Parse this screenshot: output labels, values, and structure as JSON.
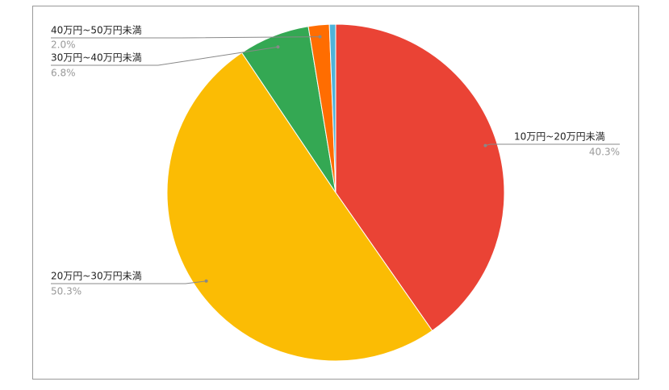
{
  "chart_data": {
    "type": "pie",
    "categories": [
      "10万円~20万円未満",
      "20万円~30万円未満",
      "30万円~40万円未満",
      "40万円~50万円未満",
      null
    ],
    "values": [
      40.3,
      50.3,
      6.8,
      2.0,
      0.6
    ],
    "value_labels": [
      "40.3%",
      "50.3%",
      "6.8%",
      "2.0%",
      null
    ],
    "colors": [
      "#ea4335",
      "#fbbc04",
      "#34a853",
      "#ff6d01",
      "#4fb3d9"
    ]
  }
}
